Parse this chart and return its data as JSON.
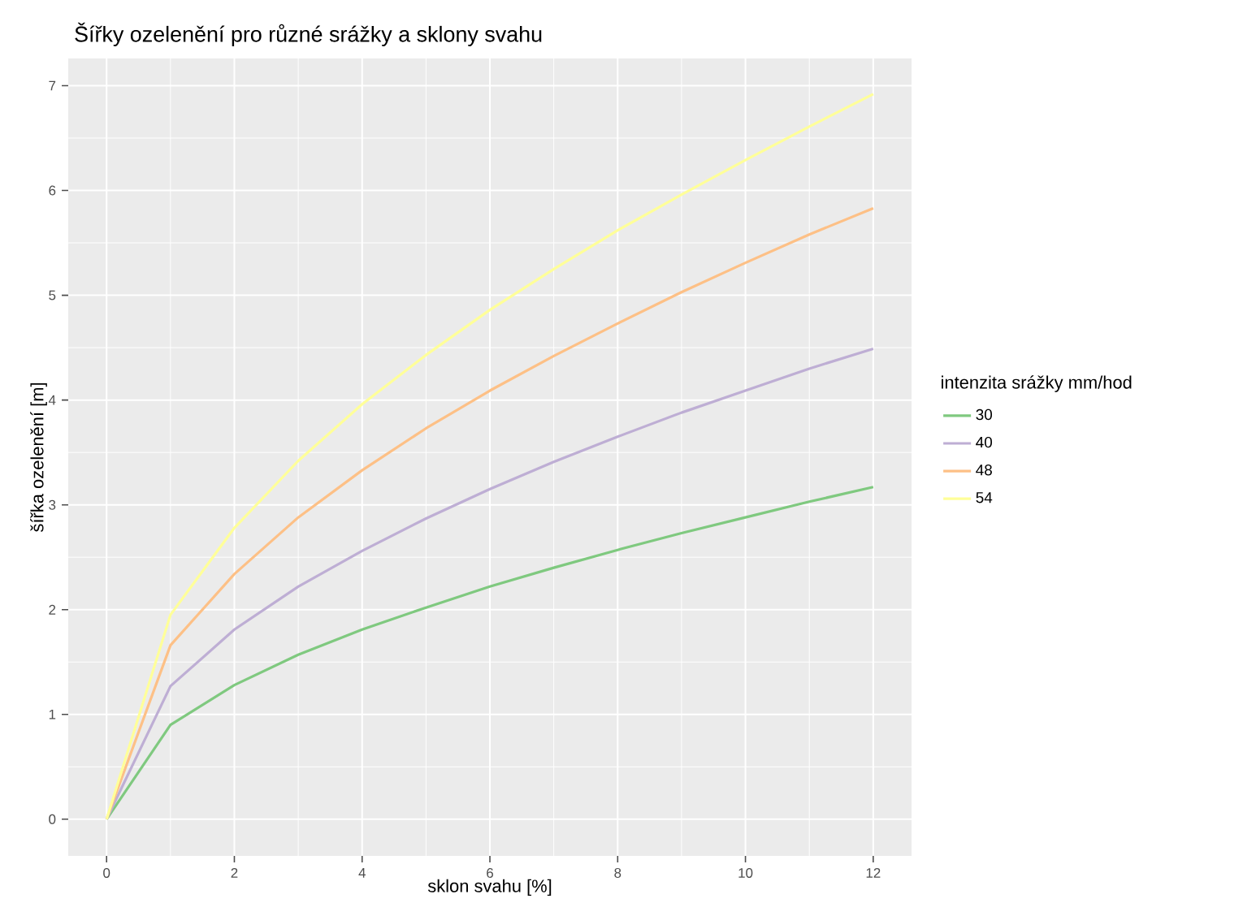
{
  "chart_data": {
    "type": "line",
    "title": "Šířky ozelenění pro různé srážky a sklony svahu",
    "xlabel": "sklon svahu [%]",
    "ylabel": "šířka ozelenění [m]",
    "legend_title": "intenzita srážky mm/hod",
    "x": [
      0,
      1,
      2,
      3,
      4,
      5,
      6,
      7,
      8,
      9,
      10,
      11,
      12
    ],
    "series": [
      {
        "name": "30",
        "color": "#7fc97f",
        "values": [
          0,
          0.9,
          1.28,
          1.57,
          1.81,
          2.02,
          2.22,
          2.4,
          2.57,
          2.73,
          2.88,
          3.03,
          3.17
        ]
      },
      {
        "name": "40",
        "color": "#beaed4",
        "values": [
          0,
          1.27,
          1.81,
          2.22,
          2.56,
          2.87,
          3.15,
          3.41,
          3.65,
          3.88,
          4.09,
          4.3,
          4.49
        ]
      },
      {
        "name": "48",
        "color": "#fdc086",
        "values": [
          0,
          1.66,
          2.34,
          2.88,
          3.33,
          3.73,
          4.09,
          4.42,
          4.73,
          5.03,
          5.31,
          5.58,
          5.83
        ]
      },
      {
        "name": "54",
        "color": "#ffff99",
        "values": [
          0,
          1.95,
          2.78,
          3.42,
          3.96,
          4.43,
          4.86,
          5.25,
          5.62,
          5.96,
          6.29,
          6.61,
          6.92
        ]
      }
    ],
    "xlim": [
      -0.6,
      12.6
    ],
    "ylim": [
      -0.35,
      7.26
    ],
    "xticks": [
      0,
      2,
      4,
      6,
      8,
      10,
      12
    ],
    "yticks": [
      0,
      1,
      2,
      3,
      4,
      5,
      6,
      7
    ],
    "grid": true,
    "legend": "right",
    "marker": "none",
    "line_style": "solid"
  }
}
